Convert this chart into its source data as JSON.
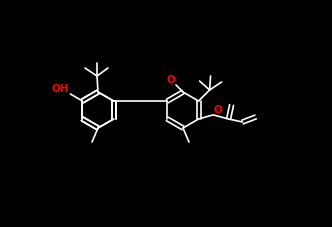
{
  "bg": "#000000",
  "bc": "#ffffff",
  "hc": "#ff0000",
  "lw": 1.2,
  "fig_w": 3.32,
  "fig_h": 2.28,
  "dpi": 100,
  "xlim": [
    0,
    332
  ],
  "ylim": [
    0,
    228
  ],
  "ring_r": 18,
  "OH_label": "OH",
  "O1_label": "O",
  "O2_label": "O",
  "font_size": 7.5
}
